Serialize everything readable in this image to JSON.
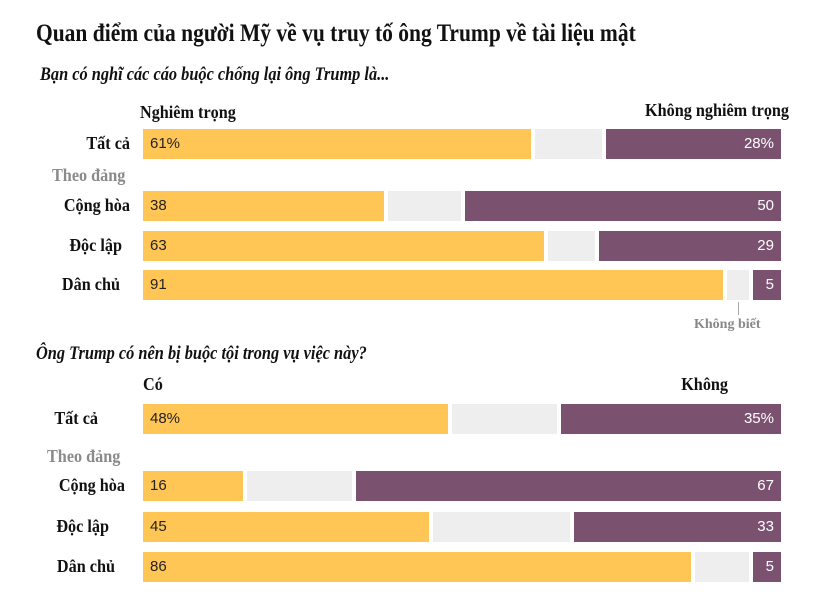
{
  "colors": {
    "serious": "#ffc555",
    "unknown": "#eeeeee",
    "not_serious": "#7b5170"
  },
  "title": "Quan điểm của người Mỹ về vụ truy tố ông Trump về tài liệu mật",
  "chart_data": [
    {
      "type": "bar",
      "stacked": true,
      "orientation": "horizontal",
      "subtitle": "Bạn có nghĩ các cáo buộc chống lại ông Trump là...",
      "left_label": "Nghiêm trọng",
      "right_label": "Không nghiêm trọng",
      "group_label": "Theo đảng",
      "unknown_label": "Không biết",
      "xlim": [
        0,
        100
      ],
      "rows": [
        {
          "label": "Tất cả",
          "left": 61,
          "right": 28,
          "left_text": "61%",
          "right_text": "28%"
        },
        {
          "label": "Cộng hòa",
          "left": 38,
          "right": 50,
          "left_text": "38",
          "right_text": "50"
        },
        {
          "label": "Độc lập",
          "left": 63,
          "right": 29,
          "left_text": "63",
          "right_text": "29"
        },
        {
          "label": "Dân chủ",
          "left": 91,
          "right": 5,
          "left_text": "91",
          "right_text": "5"
        }
      ]
    },
    {
      "type": "bar",
      "stacked": true,
      "orientation": "horizontal",
      "subtitle": "Ông Trump có nên bị buộc tội trong vụ việc này?",
      "left_label": "Có",
      "right_label": "Không",
      "group_label": "Theo đảng",
      "xlim": [
        0,
        100
      ],
      "rows": [
        {
          "label": "Tất cả",
          "left": 48,
          "right": 35,
          "left_text": "48%",
          "right_text": "35%"
        },
        {
          "label": "Cộng hòa",
          "left": 16,
          "right": 67,
          "left_text": "16",
          "right_text": "67"
        },
        {
          "label": "Độc lập",
          "left": 45,
          "right": 33,
          "left_text": "45",
          "right_text": "33"
        },
        {
          "label": "Dân chủ",
          "left": 86,
          "right": 5,
          "left_text": "86",
          "right_text": "5"
        }
      ]
    }
  ]
}
